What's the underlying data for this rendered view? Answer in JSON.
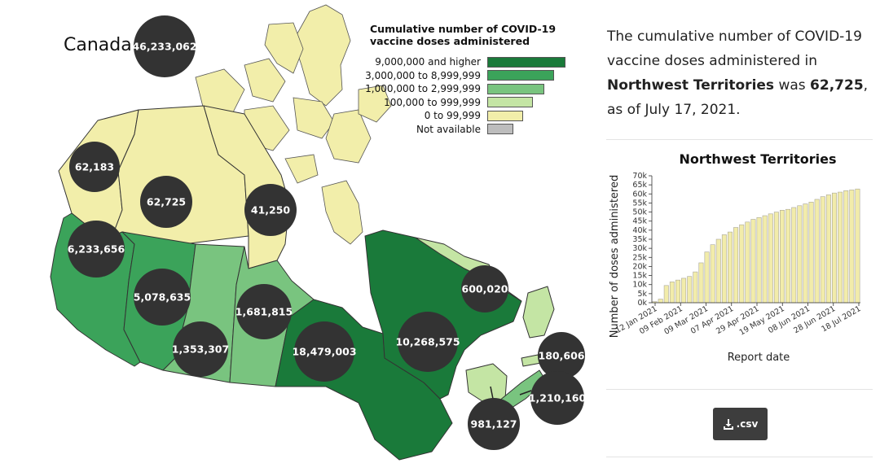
{
  "map": {
    "country_label": "Canada",
    "country_total": "46,233,062",
    "provinces": [
      {
        "id": "yukon",
        "value": "62,183",
        "tier": "tier4"
      },
      {
        "id": "northwest-territories",
        "value": "62,725",
        "tier": "tier4"
      },
      {
        "id": "nunavut",
        "value": "41,250",
        "tier": "tier4"
      },
      {
        "id": "british-columbia",
        "value": "6,233,656",
        "tier": "tier1"
      },
      {
        "id": "alberta",
        "value": "5,078,635",
        "tier": "tier1"
      },
      {
        "id": "saskatchewan",
        "value": "1,353,307",
        "tier": "tier2"
      },
      {
        "id": "manitoba",
        "value": "1,681,815",
        "tier": "tier2"
      },
      {
        "id": "ontario",
        "value": "18,479,003",
        "tier": "tier0"
      },
      {
        "id": "quebec",
        "value": "10,268,575",
        "tier": "tier0"
      },
      {
        "id": "newfoundland-and-labrador",
        "value": "600,020",
        "tier": "tier3"
      },
      {
        "id": "prince-edward-island",
        "value": "180,606",
        "tier": "tier3"
      },
      {
        "id": "nova-scotia",
        "value": "1,210,160",
        "tier": "tier2"
      },
      {
        "id": "new-brunswick",
        "value": "981,127",
        "tier": "tier3"
      }
    ]
  },
  "legend": {
    "title": "Cumulative number of COVID-19 vaccine doses administered",
    "items": [
      {
        "label": "9,000,000 and higher",
        "color": "#1a7a3a"
      },
      {
        "label": "3,000,000 to 8,999,999",
        "color": "#3ba35a"
      },
      {
        "label": "1,000,000 to 2,999,999",
        "color": "#79c47f"
      },
      {
        "label": "100,000 to 999,999",
        "color": "#c4e5a4"
      },
      {
        "label": "0 to 99,999",
        "color": "#f2eeaa"
      },
      {
        "label": "Not available",
        "color": "#bdbdbd"
      }
    ]
  },
  "summary": {
    "part1": "The cumulative number of COVID-19 vaccine doses administered in ",
    "region": "Northwest Territories",
    "part2": " was ",
    "value": "62,725",
    "part3": ", as of July 17, 2021."
  },
  "chart_data": {
    "type": "bar",
    "title": "Northwest Territories",
    "xlabel": "Report date",
    "ylabel": "Number of doses administered",
    "ylim": [
      0,
      70000
    ],
    "yticks": [
      "0k",
      "5k",
      "10k",
      "15k",
      "20k",
      "25k",
      "30k",
      "35k",
      "40k",
      "45k",
      "50k",
      "55k",
      "60k",
      "65k",
      "70k"
    ],
    "xticks": [
      "12 Jan 2021",
      "09 Feb 2021",
      "09 Mar 2021",
      "07 Apr 2021",
      "29 Apr 2021",
      "19 May 2021",
      "08 Jun 2021",
      "28 Jun 2021",
      "18 Jul 2021"
    ],
    "values": [
      600,
      2000,
      9500,
      11500,
      12500,
      13500,
      14500,
      17000,
      22000,
      28000,
      32000,
      35000,
      37500,
      39000,
      41500,
      43000,
      44500,
      46000,
      47000,
      48000,
      49000,
      50000,
      51000,
      51500,
      52500,
      53500,
      54500,
      55500,
      57000,
      58500,
      59500,
      60500,
      61000,
      61800,
      62200,
      62725
    ]
  },
  "download": {
    "label": ".csv",
    "icon": "download-icon"
  }
}
